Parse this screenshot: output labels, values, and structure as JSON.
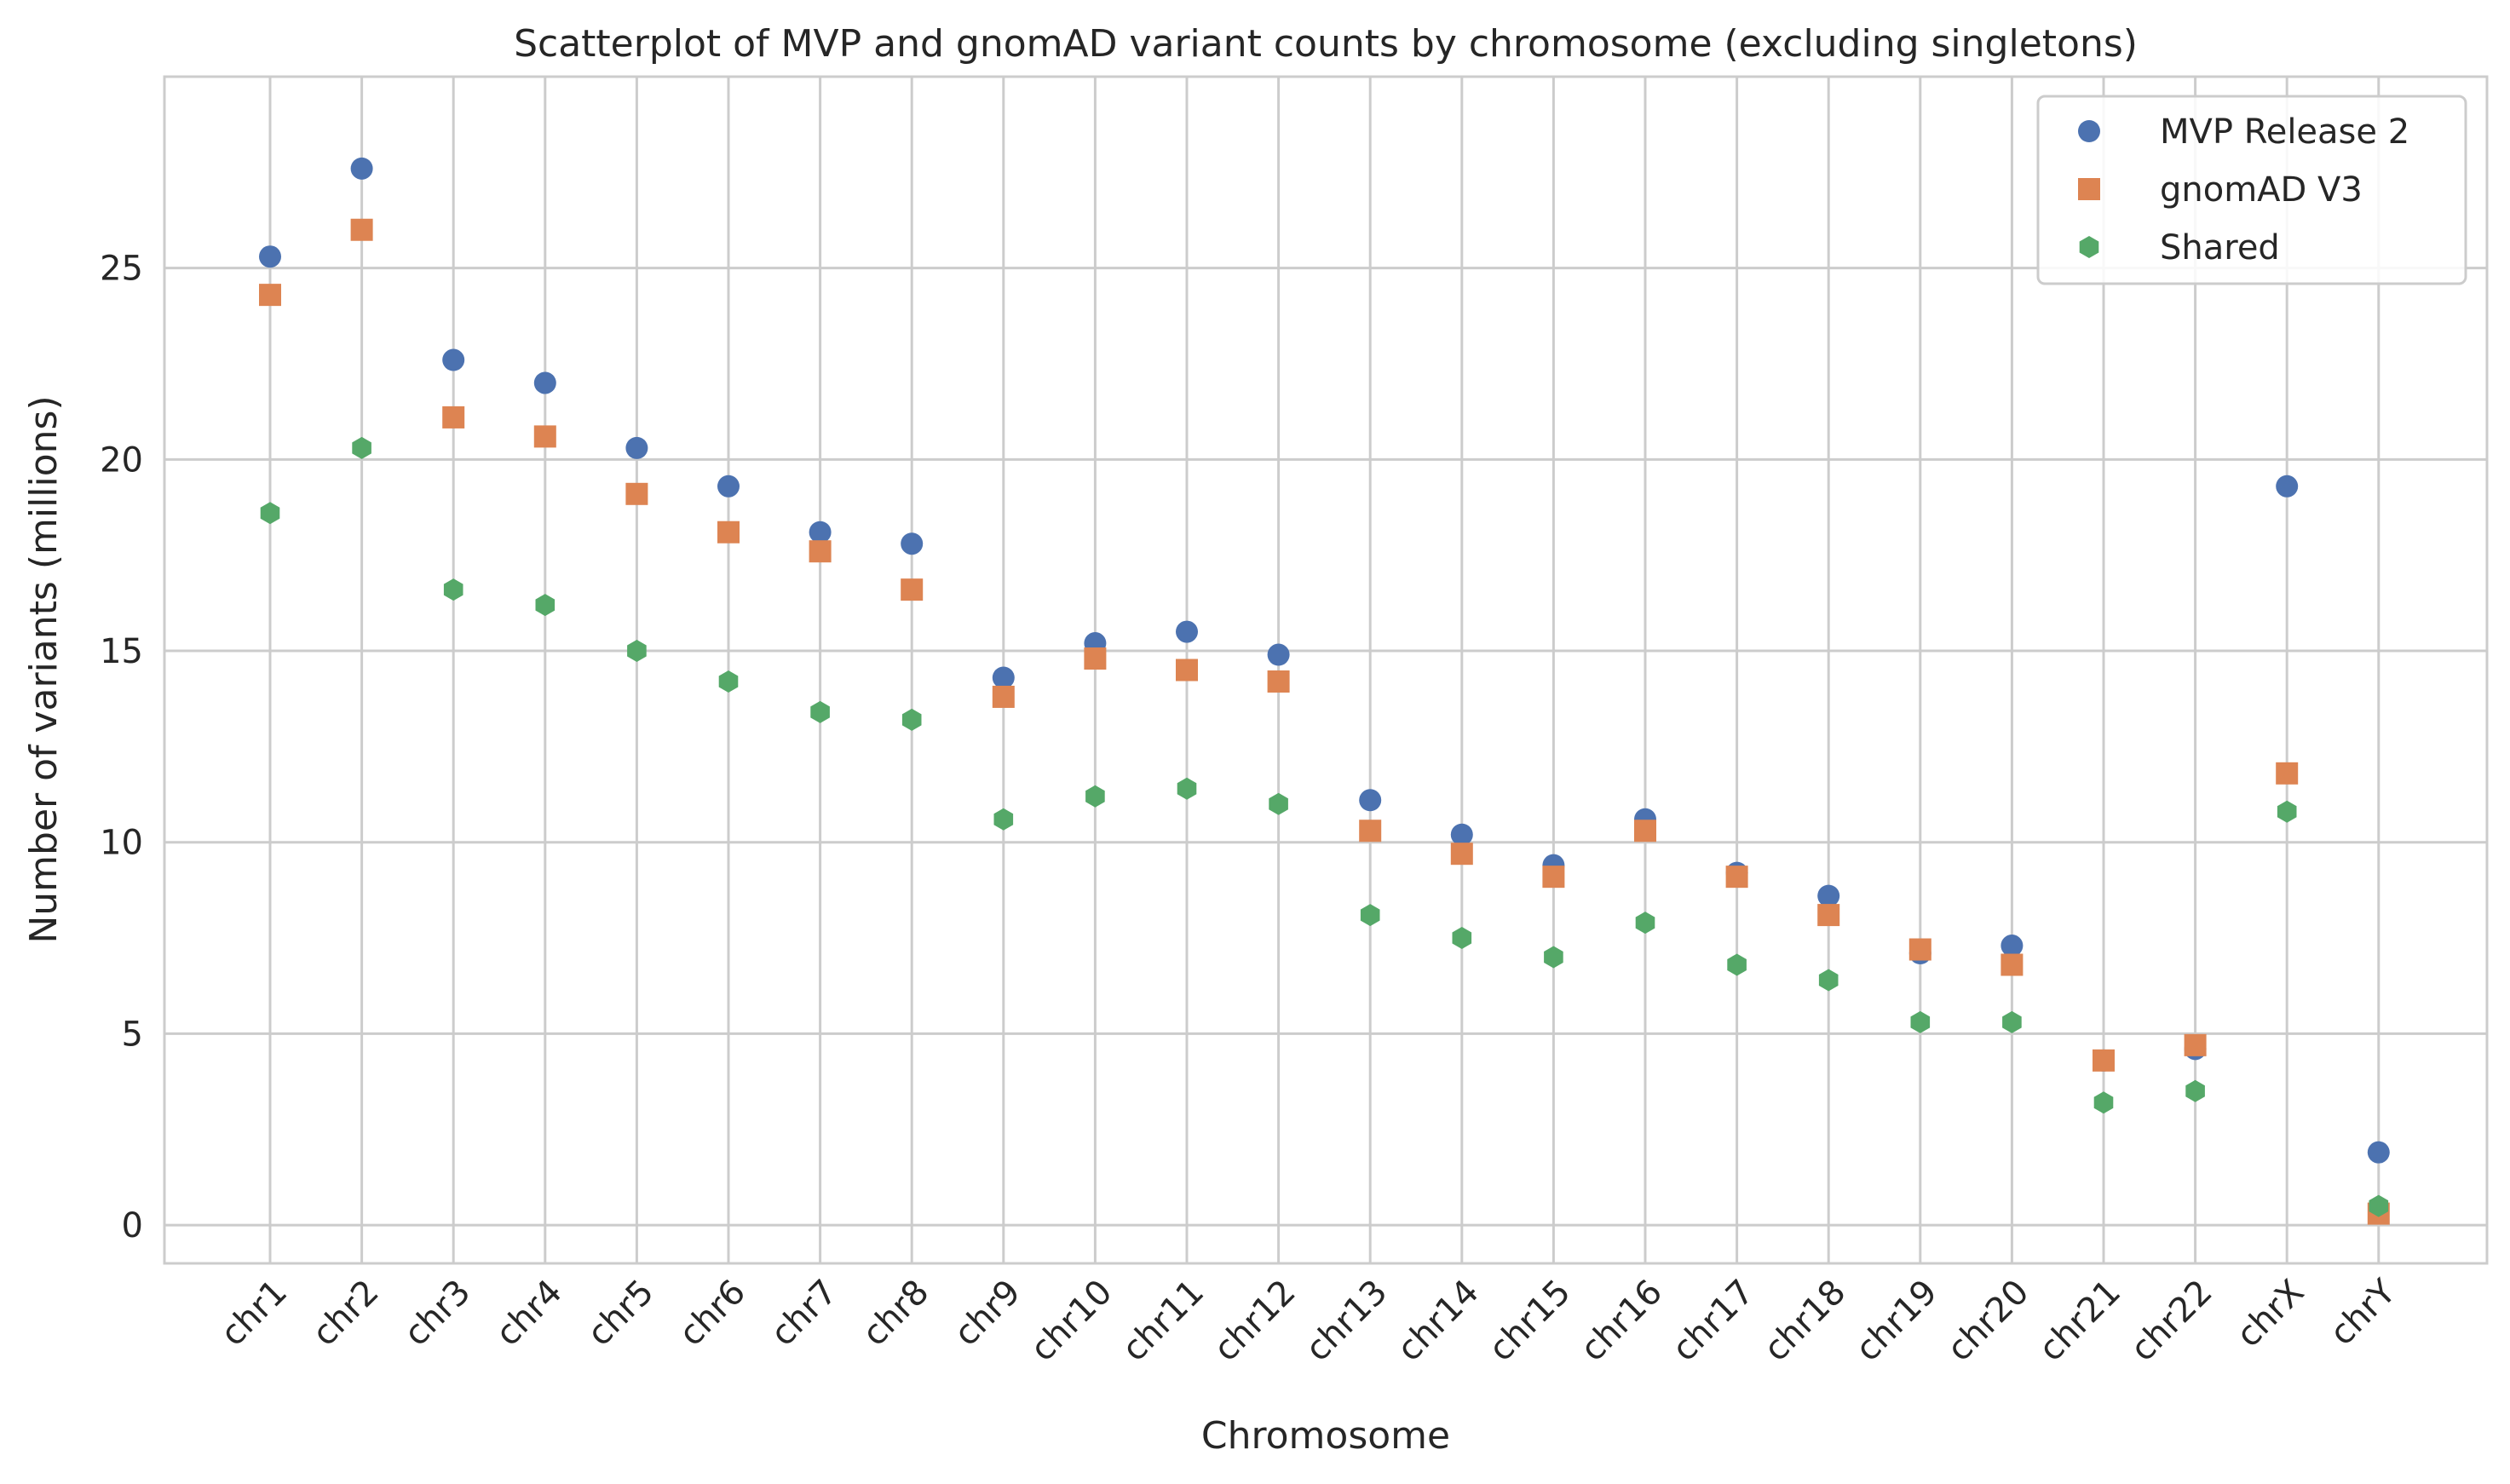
{
  "chart_data": {
    "type": "scatter",
    "title": "Scatterplot of MVP and gnomAD variant counts by chromosome (excluding singletons)",
    "xlabel": "Chromosome",
    "ylabel": "Number of variants (millions)",
    "categories": [
      "chr1",
      "chr2",
      "chr3",
      "chr4",
      "chr5",
      "chr6",
      "chr7",
      "chr8",
      "chr9",
      "chr10",
      "chr11",
      "chr12",
      "chr13",
      "chr14",
      "chr15",
      "chr16",
      "chr17",
      "chr18",
      "chr19",
      "chr20",
      "chr21",
      "chr22",
      "chrX",
      "chrY"
    ],
    "ylim": [
      -1,
      30
    ],
    "yticks": [
      0,
      5,
      10,
      15,
      20,
      25
    ],
    "grid": true,
    "legend_position": "top-right",
    "series": [
      {
        "name": "MVP Release 2",
        "marker": "circle",
        "color": "#4c72b0",
        "values": [
          25.3,
          27.6,
          22.6,
          22.0,
          20.3,
          19.3,
          18.1,
          17.8,
          14.3,
          15.2,
          15.5,
          14.9,
          11.1,
          10.2,
          9.4,
          10.6,
          9.2,
          8.6,
          7.1,
          7.3,
          4.3,
          4.6,
          19.3,
          1.9
        ]
      },
      {
        "name": "gnomAD V3",
        "marker": "square",
        "color": "#dd8452",
        "values": [
          24.3,
          26.0,
          21.1,
          20.6,
          19.1,
          18.1,
          17.6,
          16.6,
          13.8,
          14.8,
          14.5,
          14.2,
          10.3,
          9.7,
          9.1,
          10.3,
          9.1,
          8.1,
          7.2,
          6.8,
          4.3,
          4.7,
          11.8,
          0.3
        ]
      },
      {
        "name": "Shared",
        "marker": "hexagon",
        "color": "#55a868",
        "values": [
          18.6,
          20.3,
          16.6,
          16.2,
          15.0,
          14.2,
          13.4,
          13.2,
          10.6,
          11.2,
          11.4,
          11.0,
          8.1,
          7.5,
          7.0,
          7.9,
          6.8,
          6.4,
          5.3,
          5.3,
          3.2,
          3.5,
          10.8,
          0.5
        ]
      }
    ]
  }
}
